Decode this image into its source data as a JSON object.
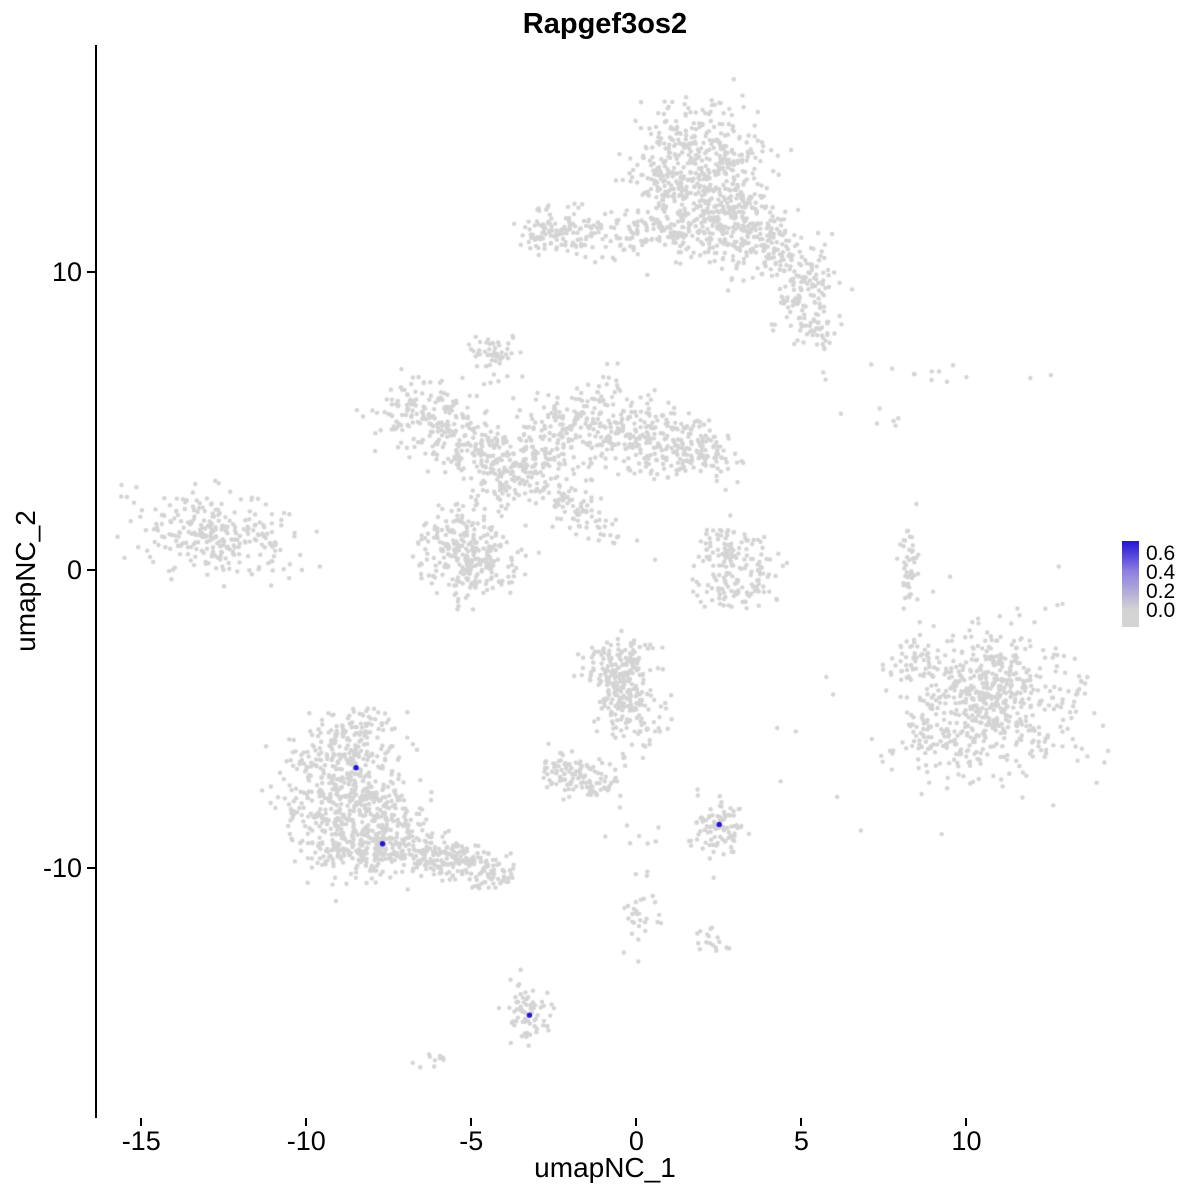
{
  "chart_data": {
    "type": "scatter",
    "title": "Rapgef3os2",
    "xlabel": "umapNC_1",
    "ylabel": "umapNC_2",
    "xlim": [
      -16.4,
      14.5
    ],
    "ylim": [
      -18.4,
      17.6
    ],
    "x_ticks": [
      -15,
      -10,
      -5,
      0,
      5,
      10
    ],
    "y_ticks": [
      -10,
      0,
      10
    ],
    "grid": false,
    "background": "#ffffff",
    "point_color": "#d4d4d4",
    "point_radius": 2.2,
    "highlight_color": "#2313d6",
    "seed": 42,
    "legend": {
      "position": "right",
      "ticks": [
        "0.6",
        "0.4",
        "0.2",
        "0.0"
      ],
      "gradient": [
        "#2313d6",
        "#8c7fe0",
        "#d4d4d4"
      ],
      "high_color": "#2313d6",
      "low_color": "#d4d4d4"
    },
    "clusters": [
      {
        "x": 1.7,
        "y": 14.0,
        "sdx": 1.05,
        "sdy": 0.85,
        "n": 300
      },
      {
        "x": 2.6,
        "y": 12.5,
        "sdx": 0.6,
        "sdy": 0.7,
        "n": 130
      },
      {
        "x": 1.0,
        "y": 12.6,
        "sdx": 0.5,
        "sdy": 0.6,
        "n": 90
      },
      {
        "x": 0.4,
        "y": 11.3,
        "sdx": 1.3,
        "sdy": 0.45,
        "n": 160
      },
      {
        "x": -2.4,
        "y": 11.3,
        "sdx": 0.6,
        "sdy": 0.45,
        "n": 110
      },
      {
        "x": 2.8,
        "y": 11.6,
        "sdx": 0.8,
        "sdy": 0.5,
        "n": 110
      },
      {
        "x": 3.9,
        "y": 10.8,
        "sdx": 0.75,
        "sdy": 0.6,
        "n": 140
      },
      {
        "x": 5.0,
        "y": 9.3,
        "sdx": 0.5,
        "sdy": 0.7,
        "n": 110
      },
      {
        "x": 5.4,
        "y": 8.1,
        "sdx": 0.3,
        "sdy": 0.4,
        "n": 40
      },
      {
        "x": -4.4,
        "y": 7.2,
        "sdx": 0.3,
        "sdy": 0.42,
        "n": 55
      },
      {
        "x": -6.6,
        "y": 5.3,
        "sdx": 0.7,
        "sdy": 0.6,
        "n": 130
      },
      {
        "x": -5.3,
        "y": 4.3,
        "sdx": 0.6,
        "sdy": 0.6,
        "n": 120
      },
      {
        "x": -4.1,
        "y": 3.4,
        "sdx": 0.7,
        "sdy": 0.7,
        "n": 150
      },
      {
        "x": -2.7,
        "y": 4.1,
        "sdx": 0.6,
        "sdy": 0.8,
        "n": 130
      },
      {
        "x": -1.2,
        "y": 4.9,
        "sdx": 0.75,
        "sdy": 0.7,
        "n": 160
      },
      {
        "x": 0.4,
        "y": 4.4,
        "sdx": 0.8,
        "sdy": 0.6,
        "n": 150
      },
      {
        "x": 1.8,
        "y": 3.9,
        "sdx": 0.6,
        "sdy": 0.55,
        "n": 110
      },
      {
        "x": -2.0,
        "y": 2.1,
        "sdx": 0.9,
        "sdy": 0.25,
        "angle": -38,
        "n": 80
      },
      {
        "x": -5.6,
        "y": 0.9,
        "sdx": 0.65,
        "sdy": 0.7,
        "n": 150
      },
      {
        "x": -4.7,
        "y": 0.1,
        "sdx": 0.6,
        "sdy": 0.6,
        "n": 130
      },
      {
        "x": -12.8,
        "y": 1.2,
        "sdx": 1.25,
        "sdy": 0.65,
        "angle": -10,
        "n": 280
      },
      {
        "x": 2.6,
        "y": 0.6,
        "sdx": 0.5,
        "sdy": 0.5,
        "n": 75
      },
      {
        "x": 3.4,
        "y": -0.2,
        "sdx": 0.45,
        "sdy": 0.5,
        "n": 60
      },
      {
        "x": 2.5,
        "y": -0.6,
        "sdx": 0.4,
        "sdy": 0.35,
        "n": 45
      },
      {
        "x": 8.2,
        "y": 0.2,
        "sdx": 0.14,
        "sdy": 0.75,
        "n": 45
      },
      {
        "x": 8.6,
        "y": 6.6,
        "sdx": 1.4,
        "sdy": 0.25,
        "n": 14
      },
      {
        "x": 7.6,
        "y": 4.8,
        "sdx": 0.5,
        "sdy": 0.4,
        "n": 6
      },
      {
        "x": 10.8,
        "y": -4.4,
        "sdx": 1.35,
        "sdy": 1.35,
        "n": 430
      },
      {
        "x": 10.6,
        "y": -4.2,
        "sdx": 0.8,
        "sdy": 0.9,
        "n": 160
      },
      {
        "x": 8.9,
        "y": -5.6,
        "sdx": 0.5,
        "sdy": 0.6,
        "n": 60
      },
      {
        "x": 8.3,
        "y": -3.1,
        "sdx": 0.4,
        "sdy": 0.5,
        "n": 50
      },
      {
        "x": -0.6,
        "y": -3.2,
        "sdx": 0.6,
        "sdy": 0.5,
        "n": 120
      },
      {
        "x": -0.3,
        "y": -4.8,
        "sdx": 0.55,
        "sdy": 0.6,
        "n": 120
      },
      {
        "x": -0.5,
        "y": -4.0,
        "sdx": 0.3,
        "sdy": 0.4,
        "n": 50
      },
      {
        "x": -2.3,
        "y": -6.8,
        "sdx": 0.38,
        "sdy": 0.36,
        "n": 65
      },
      {
        "x": -1.3,
        "y": -7.0,
        "sdx": 0.36,
        "sdy": 0.34,
        "n": 55
      },
      {
        "x": -8.8,
        "y": -6.3,
        "sdx": 0.8,
        "sdy": 0.6,
        "n": 170
      },
      {
        "x": -9.4,
        "y": -7.8,
        "sdx": 0.8,
        "sdy": 0.8,
        "n": 190
      },
      {
        "x": -8.0,
        "y": -8.0,
        "sdx": 0.7,
        "sdy": 0.7,
        "n": 170
      },
      {
        "x": -8.6,
        "y": -9.3,
        "sdx": 0.9,
        "sdy": 0.6,
        "n": 180
      },
      {
        "x": -7.2,
        "y": -9.3,
        "sdx": 0.6,
        "sdy": 0.5,
        "n": 120
      },
      {
        "x": -6.0,
        "y": -9.6,
        "sdx": 0.6,
        "sdy": 0.4,
        "n": 90
      },
      {
        "x": -5.0,
        "y": -9.9,
        "sdx": 0.5,
        "sdy": 0.35,
        "n": 70
      },
      {
        "x": -4.4,
        "y": -10.3,
        "sdx": 0.3,
        "sdy": 0.3,
        "n": 40
      },
      {
        "x": -8.4,
        "y": -5.2,
        "sdx": 0.6,
        "sdy": 0.3,
        "n": 45
      },
      {
        "x": 2.5,
        "y": -8.7,
        "sdx": 0.42,
        "sdy": 0.48,
        "n": 95
      },
      {
        "x": 0.2,
        "y": -9.5,
        "sdx": 0.5,
        "sdy": 0.6,
        "n": 10
      },
      {
        "x": 0.0,
        "y": -11.8,
        "sdx": 0.3,
        "sdy": 0.45,
        "n": 28
      },
      {
        "x": 2.2,
        "y": -12.3,
        "sdx": 0.4,
        "sdy": 0.25,
        "n": 18
      },
      {
        "x": -3.4,
        "y": -14.6,
        "sdx": 0.28,
        "sdy": 0.5,
        "n": 45
      },
      {
        "x": -3.2,
        "y": -15.3,
        "sdx": 0.3,
        "sdy": 0.3,
        "n": 22
      },
      {
        "x": -6.2,
        "y": -16.4,
        "sdx": 0.28,
        "sdy": 0.14,
        "n": 10
      },
      {
        "x": 4.8,
        "y": -5.5,
        "sdx": 1.2,
        "sdy": 1.6,
        "n": 7
      }
    ],
    "highlights": [
      {
        "x": -8.55,
        "y": -6.65,
        "value": 0.6
      },
      {
        "x": -7.75,
        "y": -9.2,
        "value": 0.6
      },
      {
        "x": 2.45,
        "y": -8.55,
        "value": 0.6
      },
      {
        "x": -3.3,
        "y": -14.95,
        "value": 0.55
      }
    ]
  }
}
